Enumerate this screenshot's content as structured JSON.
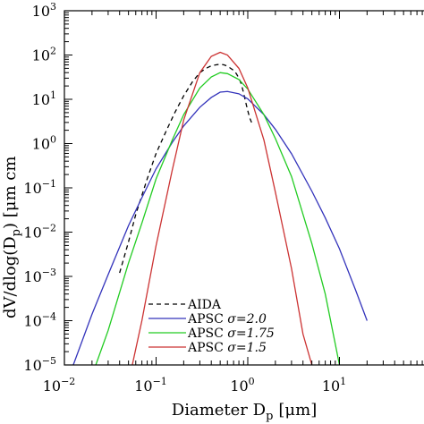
{
  "chart_data": {
    "type": "line",
    "xlabel_main": "Diameter D",
    "xlabel_sub": "p",
    "xlabel_unit": "[μm]",
    "ylabel_visible": "dV/dlog(D",
    "ylabel_sub": "p",
    "ylabel_tail": ") [μm cm",
    "xscale": "log",
    "yscale": "log",
    "xlim": [
      0.01,
      100
    ],
    "ylim": [
      1e-05,
      1000
    ],
    "x_ticks": [
      {
        "base": "10",
        "exp": "−2",
        "value": 0.01
      },
      {
        "base": "10",
        "exp": "−1",
        "value": 0.1
      },
      {
        "base": "10",
        "exp": "0",
        "value": 1
      },
      {
        "base": "10",
        "exp": "1",
        "value": 10
      }
    ],
    "y_ticks": [
      {
        "base": "10",
        "exp": "−5",
        "value": 1e-05
      },
      {
        "base": "10",
        "exp": "−4",
        "value": 0.0001
      },
      {
        "base": "10",
        "exp": "−3",
        "value": 0.001
      },
      {
        "base": "10",
        "exp": "−2",
        "value": 0.01
      },
      {
        "base": "10",
        "exp": "−1",
        "value": 0.1
      },
      {
        "base": "10",
        "exp": "0",
        "value": 1
      },
      {
        "base": "10",
        "exp": "1",
        "value": 10
      },
      {
        "base": "10",
        "exp": "2",
        "value": 100
      },
      {
        "base": "10",
        "exp": "3",
        "value": 1000
      }
    ],
    "legend_position": "bottom-center",
    "series": [
      {
        "name": "AIDA",
        "color": "#000000",
        "dash": true,
        "x": [
          0.04,
          0.05,
          0.06,
          0.08,
          0.1,
          0.13,
          0.16,
          0.2,
          0.25,
          0.3,
          0.35,
          0.4,
          0.45,
          0.5,
          0.55,
          0.6,
          0.65,
          0.7,
          0.75,
          0.8,
          0.85,
          0.9,
          0.95,
          1.0,
          1.05,
          1.1
        ],
        "y": [
          0.0012,
          0.006,
          0.025,
          0.16,
          0.6,
          2.0,
          5.0,
          12,
          25,
          40,
          50,
          57,
          60,
          62,
          60,
          56,
          50,
          45,
          38,
          30,
          22,
          14,
          8.5,
          5.5,
          3.8,
          3.0
        ]
      },
      {
        "name": "APSC σ=2.0",
        "legend_label": "APSC",
        "legend_sigma": "σ=2.0",
        "color": "#3333bb",
        "dash": false,
        "x": [
          0.0125,
          0.02,
          0.03,
          0.05,
          0.07,
          0.1,
          0.15,
          0.2,
          0.3,
          0.4,
          0.5,
          0.6,
          0.8,
          1.0,
          1.5,
          2,
          3,
          5,
          7,
          10,
          15,
          20
        ],
        "y": [
          1e-05,
          0.00014,
          0.0011,
          0.014,
          0.06,
          0.27,
          1.06,
          2.5,
          6.6,
          11.0,
          14.5,
          15.0,
          13.3,
          10.2,
          4.5,
          2.1,
          0.59,
          0.084,
          0.021,
          0.0042,
          0.00049,
          0.0001
        ]
      },
      {
        "name": "APSC σ=1.75",
        "legend_label": "APSC",
        "legend_sigma": "σ=1.75",
        "color": "#22cc22",
        "dash": false,
        "x": [
          0.022,
          0.03,
          0.05,
          0.07,
          0.1,
          0.15,
          0.2,
          0.3,
          0.4,
          0.5,
          0.6,
          0.8,
          1.0,
          1.5,
          2,
          3,
          5,
          7,
          10
        ],
        "y": [
          1e-05,
          6e-05,
          0.002,
          0.016,
          0.16,
          1.2,
          4.5,
          18,
          32,
          40,
          38,
          28,
          17,
          4.5,
          1.3,
          0.18,
          0.0055,
          0.0004,
          1e-05
        ]
      },
      {
        "name": "APSC σ=1.5",
        "legend_label": "APSC",
        "legend_sigma": "σ=1.5",
        "color": "#cc3333",
        "dash": false,
        "x": [
          0.055,
          0.07,
          0.1,
          0.15,
          0.2,
          0.3,
          0.4,
          0.5,
          0.6,
          0.8,
          1.0,
          1.5,
          2,
          3,
          4,
          5
        ],
        "y": [
          1e-05,
          0.0001,
          0.005,
          0.25,
          3.4,
          40,
          93,
          115,
          100,
          50,
          18,
          1.2,
          0.08,
          0.0015,
          5e-05,
          1e-05
        ]
      }
    ]
  }
}
